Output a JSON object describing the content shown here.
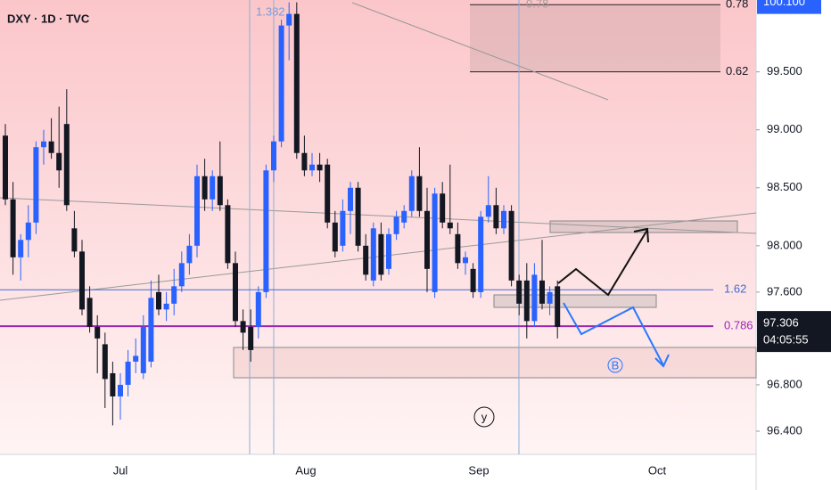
{
  "chart_data": {
    "type": "candlestick",
    "title": "DXY · 1D · TVC",
    "categories": [
      "Jul",
      "Aug",
      "Sep",
      "Oct"
    ],
    "ylim": [
      96.2,
      100.12
    ],
    "yticks": [
      {
        "value": 99.5,
        "label": "99.500"
      },
      {
        "value": 99,
        "label": "99.000"
      },
      {
        "value": 98.5,
        "label": "98.500"
      },
      {
        "value": 98,
        "label": "98.000"
      },
      {
        "value": 97.6,
        "label": "97.600"
      },
      {
        "value": 96.8,
        "label": "96.800"
      },
      {
        "value": 96.4,
        "label": "96.400"
      }
    ],
    "up_color": "#2962ff",
    "down_color": "#131722",
    "candles": [
      [
        98.95,
        99.05,
        98.35,
        98.4
      ],
      [
        98.4,
        98.55,
        97.75,
        97.9
      ],
      [
        97.9,
        98.1,
        97.7,
        98.05
      ],
      [
        98.05,
        98.35,
        97.9,
        98.2
      ],
      [
        98.2,
        98.9,
        98.1,
        98.85
      ],
      [
        98.85,
        99.0,
        98.7,
        98.9
      ],
      [
        98.9,
        99.1,
        98.75,
        98.8
      ],
      [
        98.8,
        99.2,
        98.5,
        98.65
      ],
      [
        99.05,
        99.35,
        98.3,
        98.35
      ],
      [
        98.15,
        98.3,
        97.9,
        97.95
      ],
      [
        97.95,
        98.05,
        97.4,
        97.45
      ],
      [
        97.55,
        97.65,
        97.25,
        97.3
      ],
      [
        97.3,
        97.4,
        96.9,
        97.2
      ],
      [
        97.15,
        97.25,
        96.6,
        96.85
      ],
      [
        96.9,
        97.0,
        96.45,
        96.7
      ],
      [
        96.7,
        96.9,
        96.5,
        96.8
      ],
      [
        96.8,
        97.1,
        96.7,
        97.0
      ],
      [
        97.0,
        97.2,
        96.9,
        97.05
      ],
      [
        96.9,
        97.4,
        96.85,
        97.3
      ],
      [
        97.0,
        97.7,
        96.95,
        97.55
      ],
      [
        97.6,
        97.75,
        97.4,
        97.45
      ],
      [
        97.45,
        97.6,
        97.35,
        97.5
      ],
      [
        97.5,
        97.8,
        97.4,
        97.65
      ],
      [
        97.65,
        97.95,
        97.6,
        97.85
      ],
      [
        97.85,
        98.1,
        97.75,
        98.0
      ],
      [
        98.0,
        98.7,
        97.9,
        98.6
      ],
      [
        98.6,
        98.75,
        98.3,
        98.4
      ],
      [
        98.4,
        98.65,
        98.3,
        98.6
      ],
      [
        98.6,
        98.9,
        98.3,
        98.35
      ],
      [
        98.35,
        98.4,
        97.8,
        97.85
      ],
      [
        97.85,
        97.95,
        97.3,
        97.35
      ],
      [
        97.35,
        97.45,
        97.1,
        97.25
      ],
      [
        97.3,
        97.45,
        97.0,
        97.1
      ],
      [
        97.3,
        97.65,
        97.2,
        97.6
      ],
      [
        97.6,
        98.7,
        97.55,
        98.65
      ],
      [
        98.65,
        98.95,
        98.55,
        98.9
      ],
      [
        98.9,
        99.95,
        98.85,
        99.9
      ],
      [
        99.9,
        100.1,
        99.6,
        100.0
      ],
      [
        100.0,
        100.1,
        98.75,
        98.8
      ],
      [
        98.8,
        98.95,
        98.6,
        98.65
      ],
      [
        98.65,
        98.8,
        98.6,
        98.7
      ],
      [
        98.7,
        98.8,
        98.55,
        98.65
      ],
      [
        98.7,
        98.75,
        98.15,
        98.2
      ],
      [
        98.2,
        98.3,
        97.9,
        97.95
      ],
      [
        98.0,
        98.4,
        97.95,
        98.3
      ],
      [
        98.3,
        98.55,
        98.1,
        98.5
      ],
      [
        98.5,
        98.55,
        97.95,
        98.0
      ],
      [
        98.0,
        98.1,
        97.7,
        97.75
      ],
      [
        97.7,
        98.2,
        97.65,
        98.15
      ],
      [
        98.1,
        98.2,
        97.7,
        97.75
      ],
      [
        97.8,
        98.15,
        97.75,
        98.1
      ],
      [
        98.1,
        98.3,
        98.05,
        98.25
      ],
      [
        98.2,
        98.35,
        98.15,
        98.3
      ],
      [
        98.3,
        98.65,
        98.25,
        98.6
      ],
      [
        98.6,
        98.85,
        98.25,
        98.3
      ],
      [
        98.3,
        98.5,
        97.6,
        97.8
      ],
      [
        97.6,
        98.5,
        97.55,
        98.45
      ],
      [
        98.45,
        98.55,
        98.15,
        98.2
      ],
      [
        98.2,
        98.7,
        98.1,
        98.15
      ],
      [
        98.1,
        98.2,
        97.8,
        97.85
      ],
      [
        97.85,
        97.95,
        97.75,
        97.9
      ],
      [
        97.8,
        97.85,
        97.55,
        97.6
      ],
      [
        97.6,
        98.3,
        97.55,
        98.25
      ],
      [
        98.25,
        98.6,
        98.2,
        98.35
      ],
      [
        98.35,
        98.5,
        98.1,
        98.15
      ],
      [
        98.15,
        98.35,
        98.1,
        98.3
      ],
      [
        98.3,
        98.35,
        97.65,
        97.7
      ],
      [
        97.7,
        97.75,
        97.4,
        97.5
      ],
      [
        97.7,
        97.85,
        97.2,
        97.35
      ],
      [
        97.35,
        97.85,
        97.3,
        97.75
      ],
      [
        97.7,
        98.05,
        97.45,
        97.5
      ],
      [
        97.5,
        97.65,
        97.4,
        97.6
      ],
      [
        97.65,
        97.7,
        97.2,
        97.3
      ]
    ],
    "levels": [
      {
        "label": "1.62",
        "price": 97.62,
        "color": "#3f6bd6"
      },
      {
        "label": "0.786",
        "price": 97.306,
        "color": "#9c27b0"
      }
    ],
    "fib_top": {
      "label": "0.78",
      "price": 100.08
    },
    "fib_mid": {
      "label": "0.62",
      "price": 99.5
    },
    "fib_faint": "0.78",
    "fib_left": "1.382",
    "marker": {
      "value": 100.1,
      "label": "100.100"
    },
    "last_price": {
      "value": 97.306,
      "label": "97.306"
    },
    "countdown": "04:05:55",
    "wave_y": "y",
    "wave_b": "B"
  }
}
